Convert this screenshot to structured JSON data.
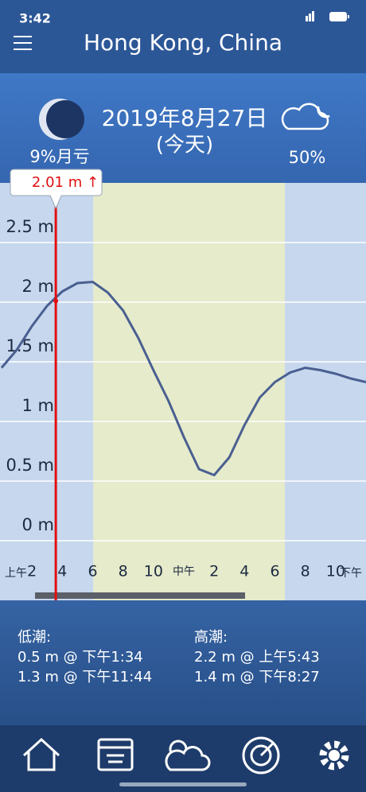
{
  "status_bar": {
    "time": "3:42"
  },
  "header": {
    "title": "Hong Kong, China"
  },
  "summary": {
    "date": "2019年8月27日",
    "day": "(今天)",
    "moon_phase": "9%月亏",
    "cloud_cover": "50%"
  },
  "chart_data": {
    "type": "line",
    "x": [
      0,
      1,
      2,
      3,
      4,
      5,
      6,
      7,
      8,
      9,
      10,
      11,
      12,
      13,
      14,
      15,
      16,
      17,
      18,
      19,
      20,
      21,
      22,
      23,
      24
    ],
    "values": [
      1.45,
      1.6,
      1.8,
      1.97,
      2.09,
      2.16,
      2.17,
      2.08,
      1.93,
      1.7,
      1.43,
      1.17,
      0.87,
      0.6,
      0.55,
      0.7,
      0.97,
      1.2,
      1.33,
      1.41,
      1.45,
      1.43,
      1.4,
      1.36,
      1.33
    ],
    "color": "#4a5f90",
    "xlim": [
      0,
      24
    ],
    "ylim": [
      -0.5,
      3.0
    ],
    "yticks": [
      {
        "value": 0,
        "label": "0 m"
      },
      {
        "value": 0.5,
        "label": "0.5 m"
      },
      {
        "value": 1,
        "label": "1 m"
      },
      {
        "value": 1.5,
        "label": "1.5 m"
      },
      {
        "value": 2,
        "label": "2 m"
      },
      {
        "value": 2.5,
        "label": "2.5 m"
      }
    ],
    "xticks": [
      2,
      4,
      6,
      8,
      10,
      {
        "value": 12,
        "label": "中午"
      },
      {
        "value": 14,
        "label": "2"
      },
      {
        "value": 16,
        "label": "4"
      },
      {
        "value": 18,
        "label": "6"
      },
      {
        "value": 20,
        "label": "8"
      },
      {
        "value": 22,
        "label": "10"
      }
    ],
    "am_label": "上午",
    "pm_label": "下午",
    "daylight": [
      6.03,
      18.66
    ],
    "grid": true,
    "marker": {
      "x": 3.57,
      "value": 2.01,
      "label": "2.01 m ↑"
    }
  },
  "tides": {
    "low_title": "低潮:",
    "low": [
      "0.5 m @ 下午1:34",
      "1.3 m @ 下午11:44"
    ],
    "high_title": "高潮:",
    "high": [
      "2.2 m @ 上午5:43",
      "1.4 m @ 下午8:27"
    ]
  }
}
